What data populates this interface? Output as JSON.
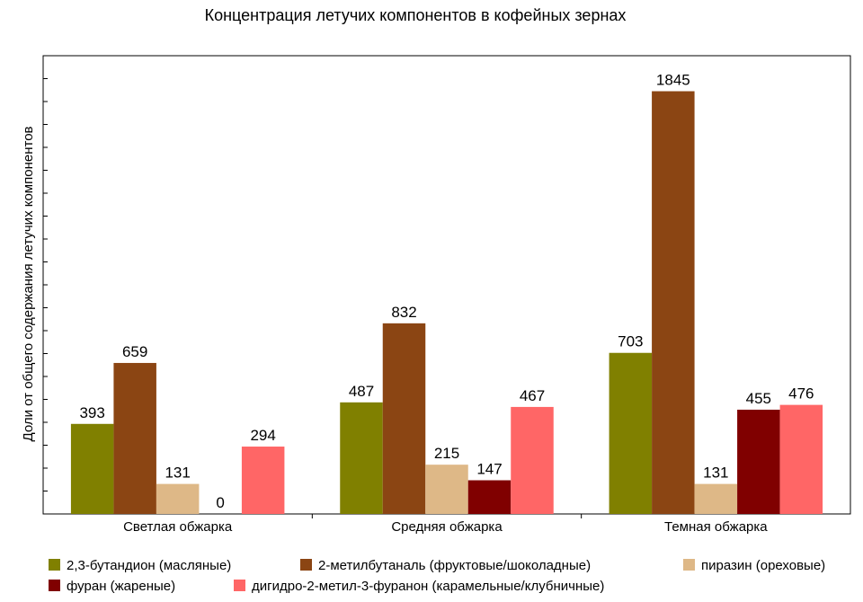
{
  "chart_data": {
    "type": "bar",
    "title": "Концентрация летучих компонентов в кофейных зернах",
    "xlabel": "",
    "ylabel": "Доли от общего содержания летучих компонентов",
    "categories": [
      "Светлая обжарка",
      "Средняя обжарка",
      "Темная обжарка"
    ],
    "ylim": [
      0,
      2000
    ],
    "grid": false,
    "legend_position": "bottom",
    "series": [
      {
        "name": "2,3-бутандион (масляные)",
        "color": "#808000",
        "values": [
          393,
          487,
          703
        ],
        "labels": [
          "393",
          "487",
          "703"
        ]
      },
      {
        "name": "2-метилбутаналь (фруктовые/шоколадные)",
        "color": "#8B4513",
        "values": [
          659,
          832,
          1845
        ],
        "labels": [
          "659",
          "832",
          "1845"
        ]
      },
      {
        "name": "пиразин (ореховые)",
        "color": "#DEB887",
        "values": [
          131,
          215,
          131
        ],
        "labels": [
          "131",
          "215",
          "131"
        ]
      },
      {
        "name": "фуран (жареные)",
        "color": "#800000",
        "values": [
          0,
          147,
          455
        ],
        "labels": [
          "0",
          "147",
          "455"
        ]
      },
      {
        "name": "дигидро-2-метил-3-фуранон (карамельные/клубничные)",
        "color": "#FF6666",
        "values": [
          294,
          467,
          476
        ],
        "labels": [
          "294",
          "467",
          "476"
        ]
      }
    ]
  }
}
